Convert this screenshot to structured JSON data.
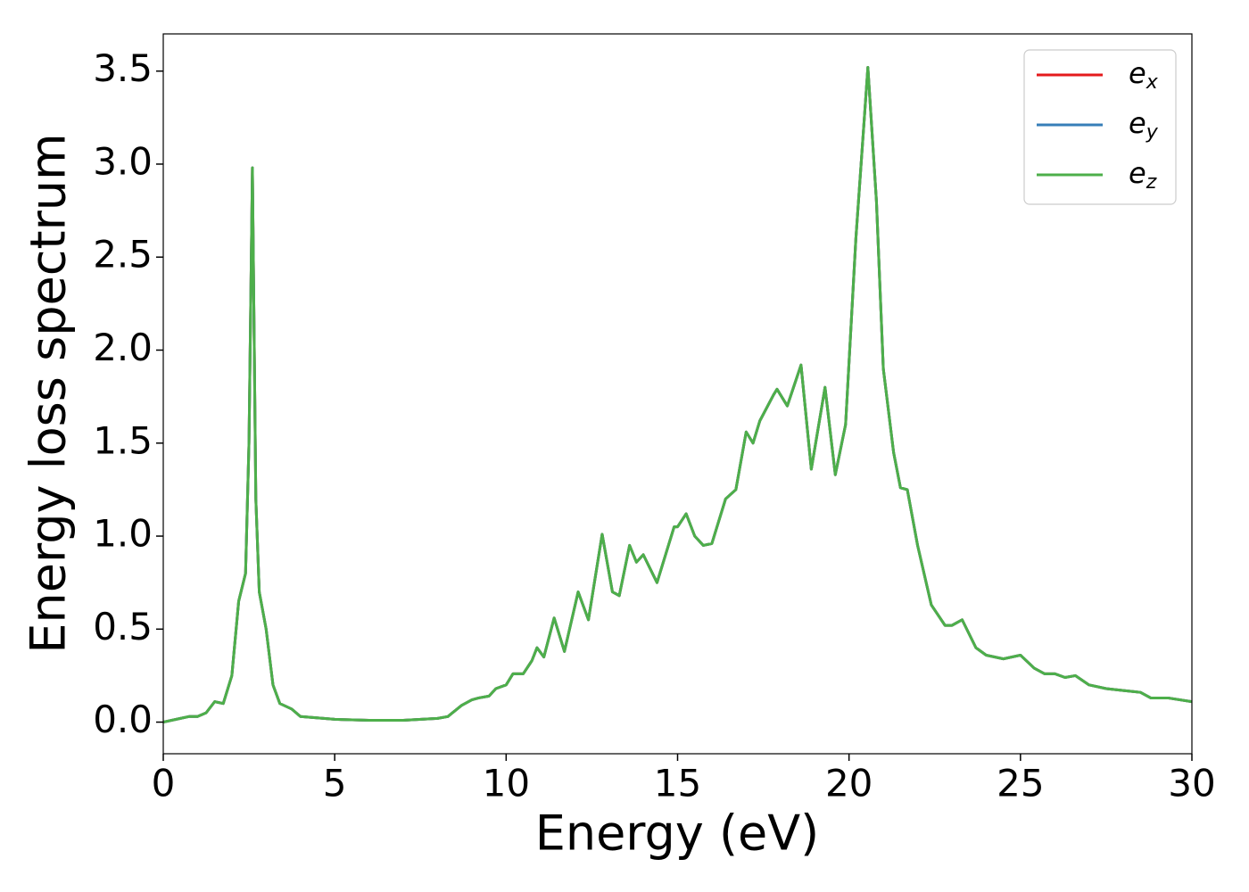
{
  "chart_data": {
    "type": "line",
    "xlabel": "Energy (eV)",
    "ylabel": "Energy loss spectrum",
    "x": [
      0,
      0.5,
      0.75,
      1.0,
      1.25,
      1.5,
      1.75,
      2.0,
      2.2,
      2.4,
      2.5,
      2.6,
      2.7,
      2.8,
      3.0,
      3.2,
      3.4,
      3.75,
      4.0,
      5.0,
      6.0,
      7.0,
      8.0,
      8.3,
      8.7,
      9.0,
      9.2,
      9.5,
      9.7,
      10.0,
      10.2,
      10.5,
      10.75,
      10.9,
      11.1,
      11.4,
      11.7,
      12.1,
      12.4,
      12.8,
      13.1,
      13.3,
      13.6,
      13.8,
      14.0,
      14.4,
      14.9,
      15.0,
      15.25,
      15.5,
      15.75,
      16.0,
      16.4,
      16.7,
      17.0,
      17.2,
      17.4,
      17.8,
      17.9,
      18.2,
      18.6,
      18.9,
      19.3,
      19.6,
      19.9,
      20.2,
      20.55,
      20.8,
      21.0,
      21.3,
      21.5,
      21.7,
      22.0,
      22.4,
      22.8,
      23.0,
      23.3,
      23.7,
      24.0,
      24.5,
      25.0,
      25.4,
      25.7,
      26.0,
      26.3,
      26.6,
      27.0,
      27.5,
      28.0,
      28.5,
      28.8,
      29.3,
      30.0
    ],
    "series": [
      {
        "name": "ex",
        "color": "#e41a1c",
        "values": [
          0.0,
          0.02,
          0.03,
          0.03,
          0.05,
          0.11,
          0.1,
          0.25,
          0.65,
          0.8,
          1.5,
          2.98,
          1.2,
          0.7,
          0.5,
          0.2,
          0.1,
          0.07,
          0.03,
          0.015,
          0.01,
          0.01,
          0.02,
          0.03,
          0.09,
          0.12,
          0.13,
          0.14,
          0.18,
          0.2,
          0.26,
          0.26,
          0.33,
          0.4,
          0.35,
          0.56,
          0.38,
          0.7,
          0.55,
          1.01,
          0.7,
          0.68,
          0.95,
          0.86,
          0.9,
          0.75,
          1.05,
          1.05,
          1.12,
          1.0,
          0.95,
          0.96,
          1.2,
          1.25,
          1.56,
          1.5,
          1.62,
          1.76,
          1.79,
          1.7,
          1.92,
          1.36,
          1.8,
          1.33,
          1.6,
          2.6,
          3.52,
          2.8,
          1.9,
          1.45,
          1.26,
          1.25,
          0.95,
          0.63,
          0.52,
          0.52,
          0.55,
          0.4,
          0.36,
          0.34,
          0.36,
          0.29,
          0.26,
          0.26,
          0.24,
          0.25,
          0.2,
          0.18,
          0.17,
          0.16,
          0.13,
          0.13,
          0.11
        ]
      },
      {
        "name": "ey",
        "color": "#377eb8",
        "values": [
          0.0,
          0.02,
          0.03,
          0.03,
          0.05,
          0.11,
          0.1,
          0.25,
          0.65,
          0.8,
          1.5,
          2.98,
          1.2,
          0.7,
          0.5,
          0.2,
          0.1,
          0.07,
          0.03,
          0.015,
          0.01,
          0.01,
          0.02,
          0.03,
          0.09,
          0.12,
          0.13,
          0.14,
          0.18,
          0.2,
          0.26,
          0.26,
          0.33,
          0.4,
          0.35,
          0.56,
          0.38,
          0.7,
          0.55,
          1.01,
          0.7,
          0.68,
          0.95,
          0.86,
          0.9,
          0.75,
          1.05,
          1.05,
          1.12,
          1.0,
          0.95,
          0.96,
          1.2,
          1.25,
          1.56,
          1.5,
          1.62,
          1.76,
          1.79,
          1.7,
          1.92,
          1.36,
          1.8,
          1.33,
          1.6,
          2.6,
          3.52,
          2.8,
          1.9,
          1.45,
          1.26,
          1.25,
          0.95,
          0.63,
          0.52,
          0.52,
          0.55,
          0.4,
          0.36,
          0.34,
          0.36,
          0.29,
          0.26,
          0.26,
          0.24,
          0.25,
          0.2,
          0.18,
          0.17,
          0.16,
          0.13,
          0.13,
          0.11
        ]
      },
      {
        "name": "ez",
        "color": "#4daf4a",
        "values": [
          0.0,
          0.02,
          0.03,
          0.03,
          0.05,
          0.11,
          0.1,
          0.25,
          0.65,
          0.8,
          1.5,
          2.98,
          1.2,
          0.7,
          0.5,
          0.2,
          0.1,
          0.07,
          0.03,
          0.015,
          0.01,
          0.01,
          0.02,
          0.03,
          0.09,
          0.12,
          0.13,
          0.14,
          0.18,
          0.2,
          0.26,
          0.26,
          0.33,
          0.4,
          0.35,
          0.56,
          0.38,
          0.7,
          0.55,
          1.01,
          0.7,
          0.68,
          0.95,
          0.86,
          0.9,
          0.75,
          1.05,
          1.05,
          1.12,
          1.0,
          0.95,
          0.96,
          1.2,
          1.25,
          1.56,
          1.5,
          1.62,
          1.76,
          1.79,
          1.7,
          1.92,
          1.36,
          1.8,
          1.33,
          1.6,
          2.6,
          3.52,
          2.8,
          1.9,
          1.45,
          1.26,
          1.25,
          0.95,
          0.63,
          0.52,
          0.52,
          0.55,
          0.4,
          0.36,
          0.34,
          0.36,
          0.29,
          0.26,
          0.26,
          0.24,
          0.25,
          0.2,
          0.18,
          0.17,
          0.16,
          0.13,
          0.13,
          0.11
        ]
      }
    ],
    "xlim": [
      0,
      30
    ],
    "xticks": [
      0,
      5,
      10,
      15,
      20,
      25,
      30
    ],
    "ylim": [
      -0.17,
      3.7
    ],
    "yticks": [
      {
        "value": 0,
        "label": "0.0"
      },
      0.5,
      {
        "value": 1,
        "label": "1.0"
      },
      1.5,
      {
        "value": 2,
        "label": "2.0"
      },
      2.5,
      {
        "value": 3,
        "label": "3.0"
      },
      3.5
    ],
    "grid": false,
    "legend": "upper right"
  }
}
